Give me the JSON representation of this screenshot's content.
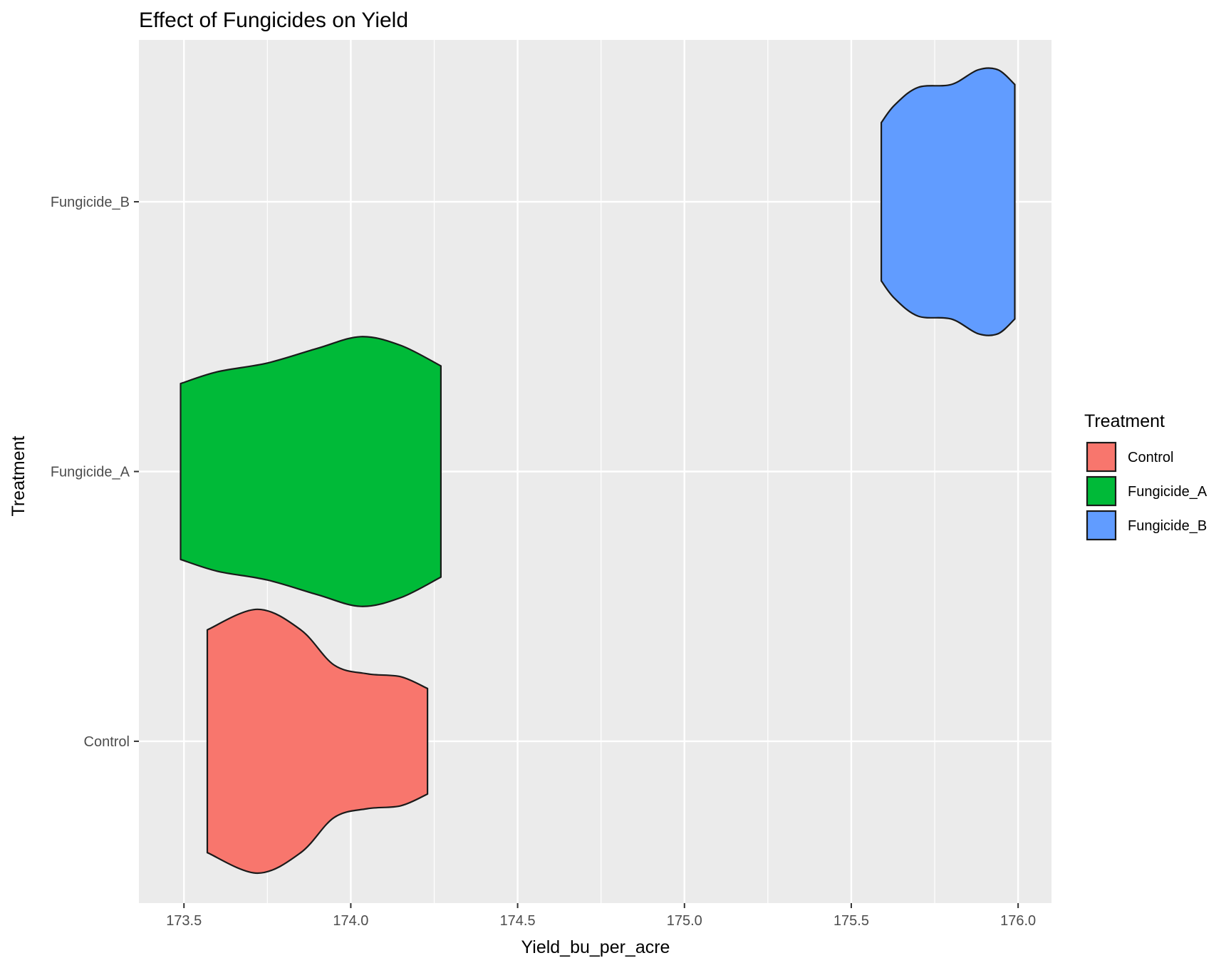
{
  "chart_data": {
    "type": "violin",
    "title": "Effect of Fungicides on Yield",
    "xlabel": "Yield_bu_per_acre",
    "ylabel": "Treatment",
    "xlim": [
      173.365,
      176.1
    ],
    "x_ticks": [
      "173.5",
      "174.0",
      "174.5",
      "175.0",
      "175.5",
      "176.0"
    ],
    "x_tick_values": [
      173.5,
      174.0,
      174.5,
      175.0,
      175.5,
      176.0
    ],
    "categories": [
      "Control",
      "Fungicide_A",
      "Fungicide_B"
    ],
    "grid": true,
    "legend": {
      "title": "Treatment",
      "position": "right",
      "entries": [
        "Control",
        "Fungicide_A",
        "Fungicide_B"
      ]
    },
    "series": [
      {
        "name": "Control",
        "color": "#F8766D",
        "range": [
          173.57,
          174.23
        ],
        "density_profile": [
          [
            173.57,
            0.38
          ],
          [
            173.72,
            0.45
          ],
          [
            173.85,
            0.38
          ],
          [
            173.95,
            0.26
          ],
          [
            174.05,
            0.23
          ],
          [
            174.15,
            0.22
          ],
          [
            174.23,
            0.18
          ]
        ]
      },
      {
        "name": "Fungicide_A",
        "color": "#00BA38",
        "range": [
          173.49,
          174.27
        ],
        "density_profile": [
          [
            173.49,
            0.3
          ],
          [
            173.6,
            0.34
          ],
          [
            173.75,
            0.37
          ],
          [
            173.9,
            0.42
          ],
          [
            174.03,
            0.46
          ],
          [
            174.15,
            0.43
          ],
          [
            174.27,
            0.36
          ]
        ]
      },
      {
        "name": "Fungicide_B",
        "color": "#619CFF",
        "range": [
          175.59,
          175.99
        ],
        "density_profile": [
          [
            175.59,
            0.27
          ],
          [
            175.63,
            0.33
          ],
          [
            175.7,
            0.39
          ],
          [
            175.8,
            0.4
          ],
          [
            175.88,
            0.45
          ],
          [
            175.94,
            0.45
          ],
          [
            175.99,
            0.4
          ]
        ]
      }
    ]
  }
}
